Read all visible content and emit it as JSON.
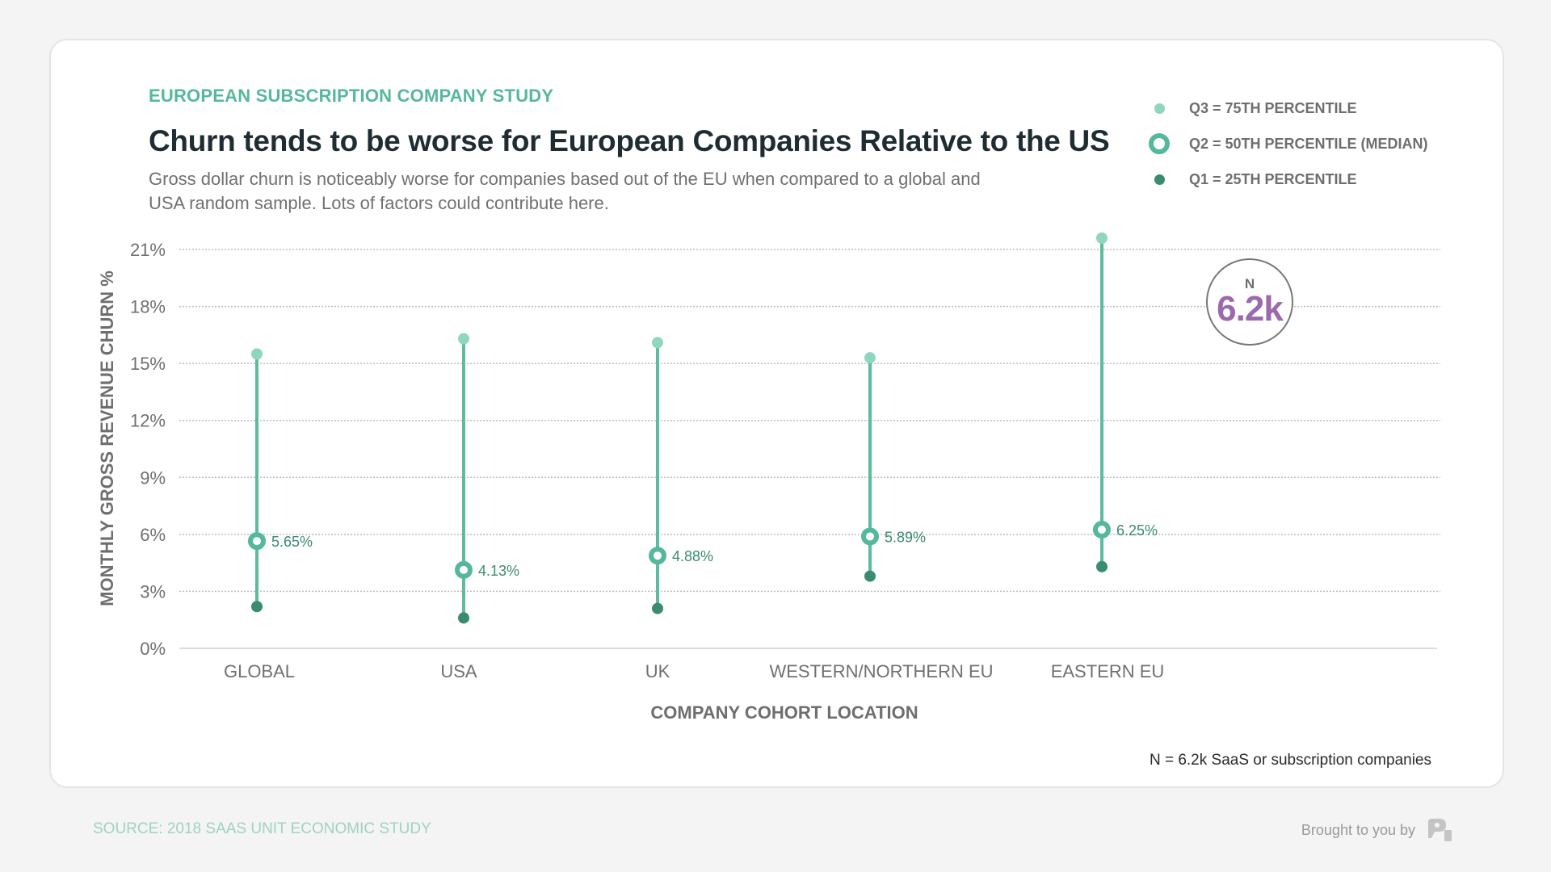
{
  "header": {
    "eyebrow": "EUROPEAN SUBSCRIPTION COMPANY STUDY",
    "title": "Churn tends to be worse for European Companies Relative to the US",
    "subtitle": "Gross dollar churn is noticeably worse for companies based out of the EU when compared to a global and USA random sample. Lots of factors could contribute here."
  },
  "legend": {
    "items": [
      {
        "key": "q3",
        "label": "Q3 = 75TH PERCENTILE",
        "icon": "filled-dot-light"
      },
      {
        "key": "q2",
        "label": "Q2 = 50TH PERCENTILE (MEDIAN)",
        "icon": "ring-dot"
      },
      {
        "key": "q1",
        "label": "Q1 = 25TH PERCENTILE",
        "icon": "filled-dot-dark"
      }
    ]
  },
  "badge": {
    "label": "N",
    "value": "6.2k"
  },
  "footnote": "N = 6.2k SaaS or subscription companies",
  "footer": {
    "source": "SOURCE: 2018 SAAS UNIT ECONOMIC STUDY",
    "brought_by": "Brought to you by",
    "brand_icon": "profitwell-logo-icon"
  },
  "colors": {
    "q3": "#8fd6bf",
    "q2": "#55b89d",
    "q1": "#3b8a72",
    "stem": "#5dbba0",
    "median_label": "#3b8a72",
    "grid": "#bdbdbd",
    "axis_text": "#6e6e6e",
    "badge_value": "#9b6aac"
  },
  "chart_data": {
    "type": "scatter",
    "subtype": "interquartile-range-dot-plot",
    "title": "Churn tends to be worse for European Companies Relative to the US",
    "xlabel": "COMPANY COHORT LOCATION",
    "ylabel": "MONTHLY GROSS REVENUE CHURN %",
    "categories": [
      "GLOBAL",
      "USA",
      "UK",
      "WESTERN/NORTHERN EU",
      "EASTERN EU"
    ],
    "ylim": [
      0,
      21
    ],
    "yticks": [
      0,
      3,
      6,
      9,
      12,
      15,
      18,
      21
    ],
    "ytick_labels": [
      "0%",
      "3%",
      "6%",
      "9%",
      "12%",
      "15%",
      "18%",
      "21%"
    ],
    "grid": true,
    "legend_position": "top-right",
    "series": [
      {
        "name": "Q3 = 75th percentile",
        "values": [
          15.5,
          16.3,
          16.1,
          15.3,
          21.6
        ]
      },
      {
        "name": "Q2 = 50th percentile (median)",
        "values": [
          5.65,
          4.13,
          4.88,
          5.89,
          6.25
        ]
      },
      {
        "name": "Q1 = 25th percentile",
        "values": [
          2.2,
          1.6,
          2.1,
          3.8,
          4.3
        ]
      }
    ],
    "median_labels": [
      "5.65%",
      "4.13%",
      "4.88%",
      "5.89%",
      "6.25%"
    ],
    "annotations": [
      "N 6.2k"
    ]
  }
}
